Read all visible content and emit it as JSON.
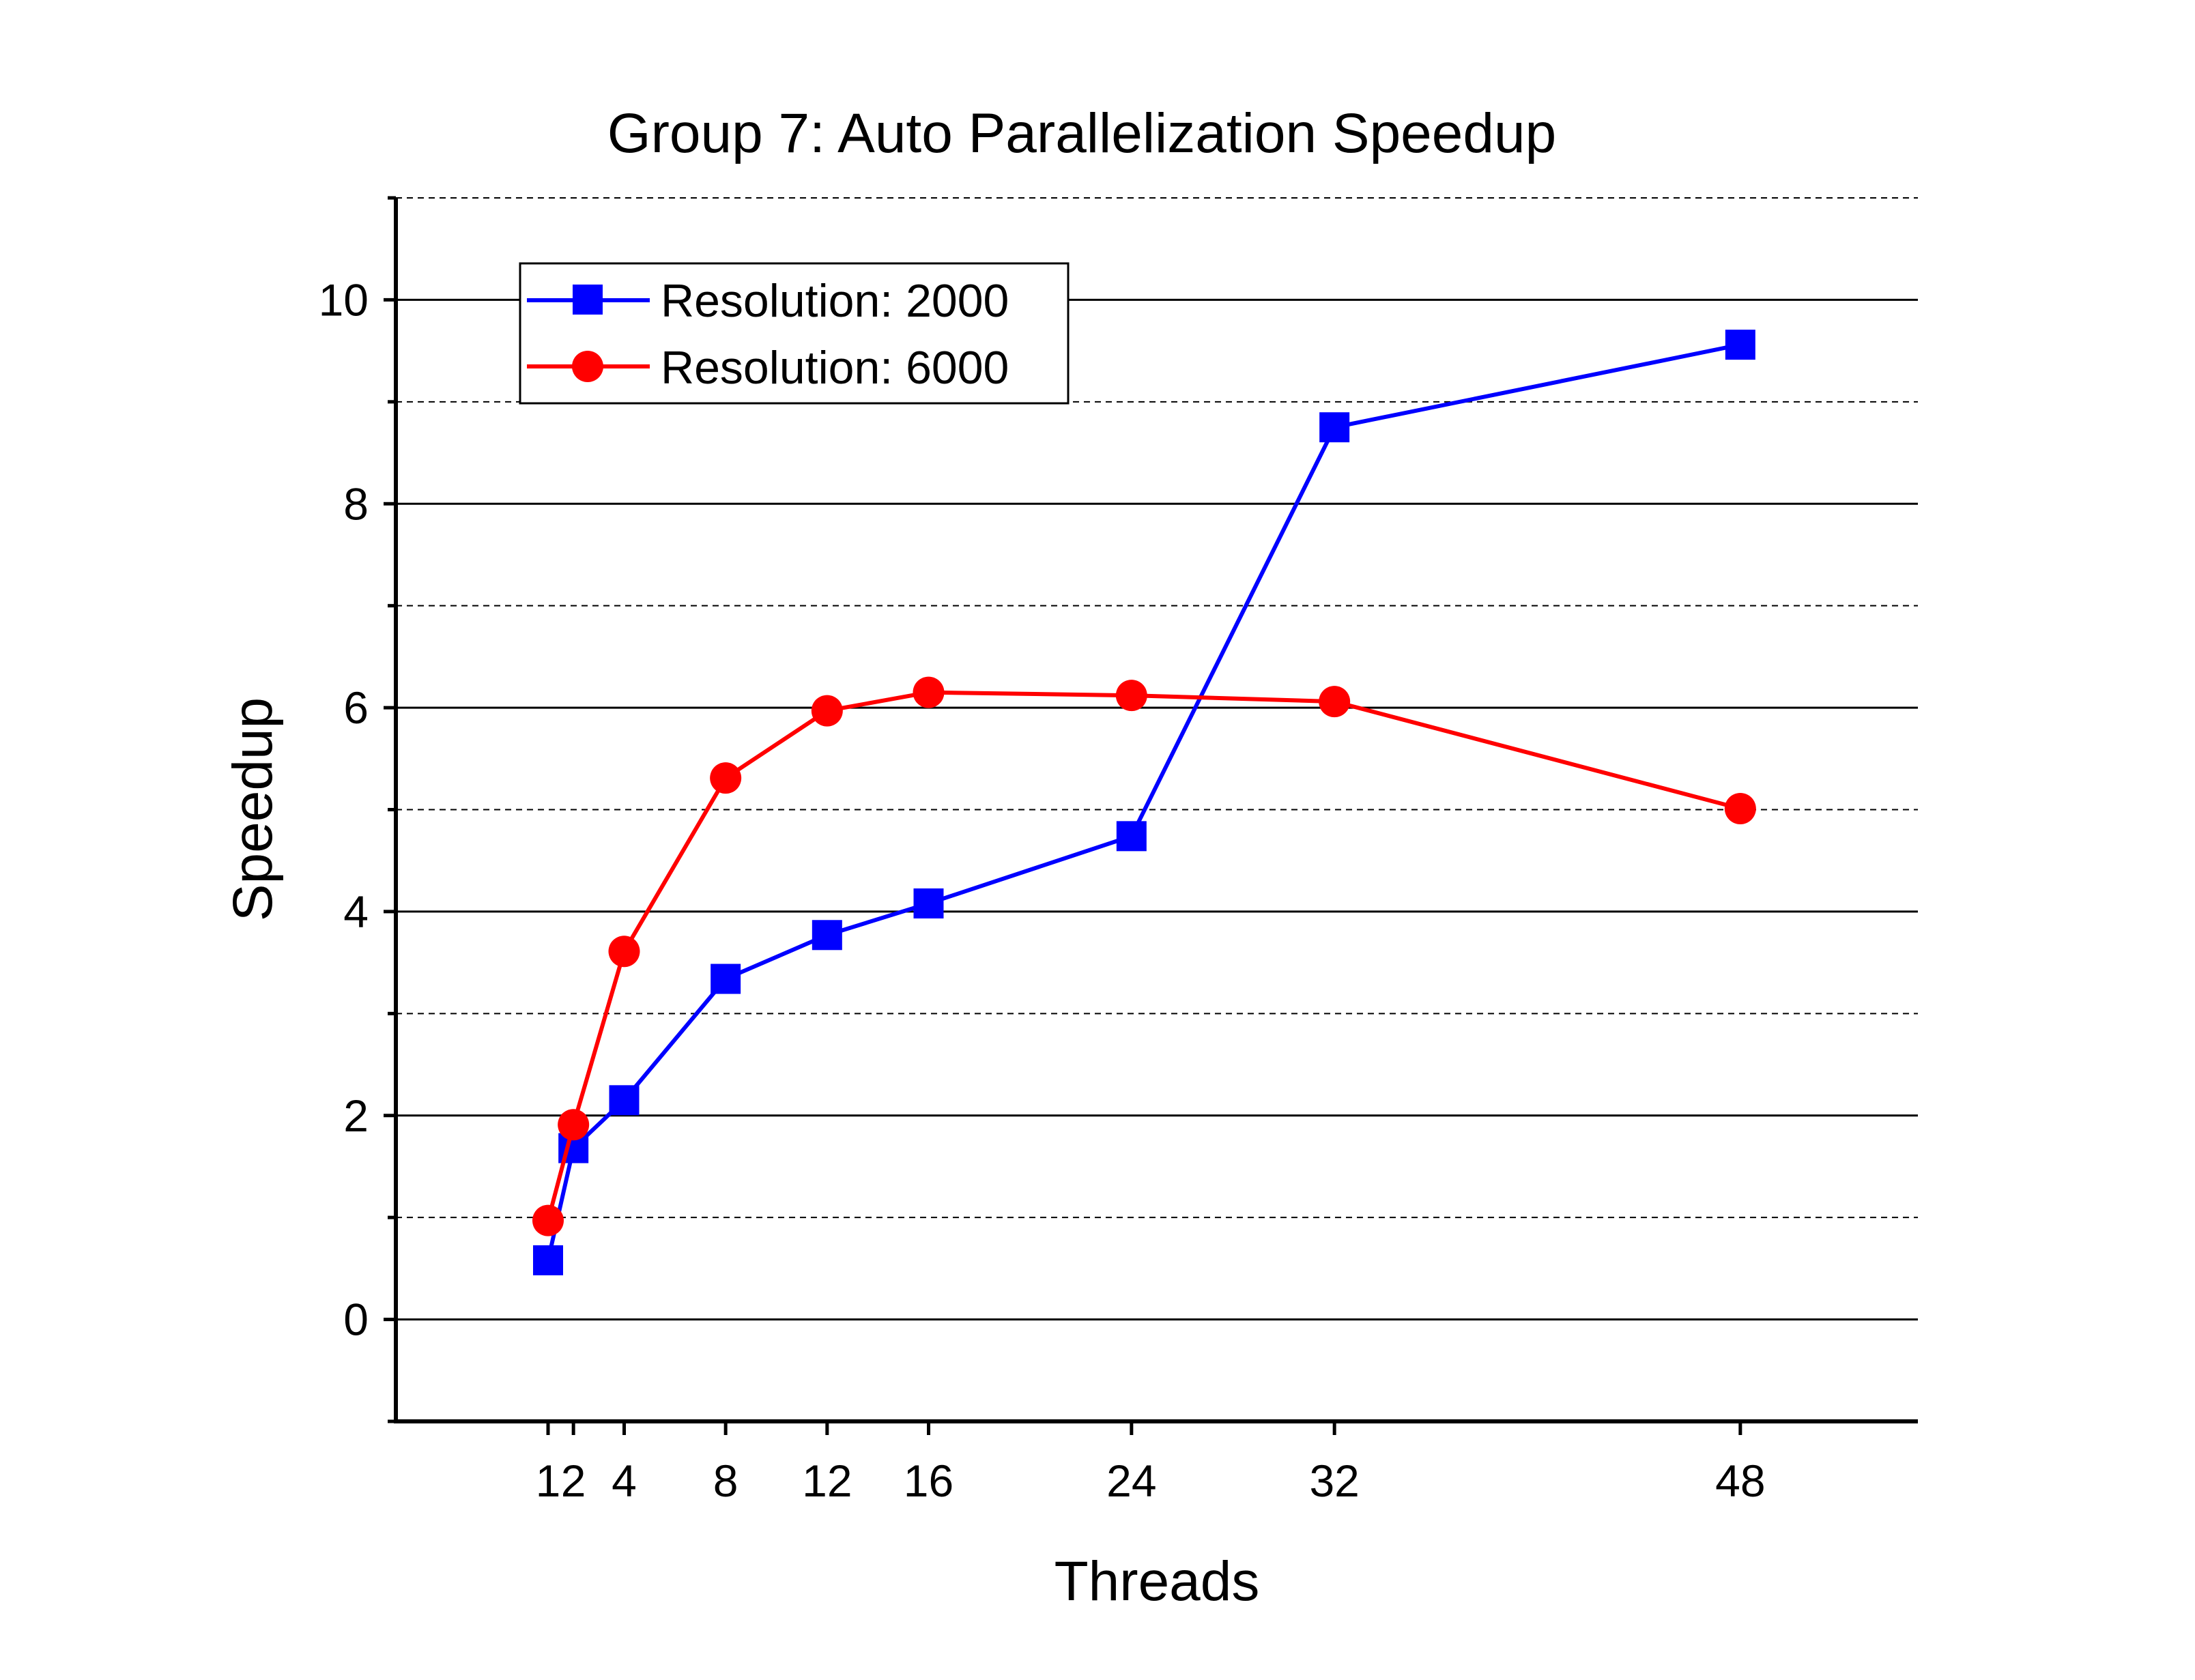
{
  "chart_data": {
    "type": "line",
    "title": "Group 7: Auto Parallelization Speedup",
    "xlabel": "Threads",
    "ylabel": "Speedup",
    "x": [
      1,
      2,
      4,
      8,
      12,
      16,
      24,
      32,
      48
    ],
    "x_tick_labels": [
      "1",
      "2",
      "4",
      "8",
      "12",
      "16",
      "24",
      "32",
      "48"
    ],
    "xlim": [
      -5,
      55
    ],
    "ylim": [
      -1,
      11
    ],
    "y_ticks": [
      0,
      2,
      4,
      6,
      8,
      10
    ],
    "y_tick_labels": [
      "0",
      "2",
      "4",
      "6",
      "8",
      "10"
    ],
    "grid": {
      "major": "solid",
      "minor": "dashed"
    },
    "legend_position": "top-left",
    "series": [
      {
        "name": "Resolution: 2000",
        "color": "#0000ff",
        "marker": "square",
        "values": [
          0.58,
          1.68,
          2.15,
          3.34,
          3.77,
          4.08,
          4.74,
          8.75,
          9.56
        ]
      },
      {
        "name": "Resolution: 6000",
        "color": "#ff0000",
        "marker": "circle",
        "values": [
          0.97,
          1.91,
          3.61,
          5.31,
          5.97,
          6.15,
          6.12,
          6.06,
          5.01
        ]
      }
    ]
  }
}
